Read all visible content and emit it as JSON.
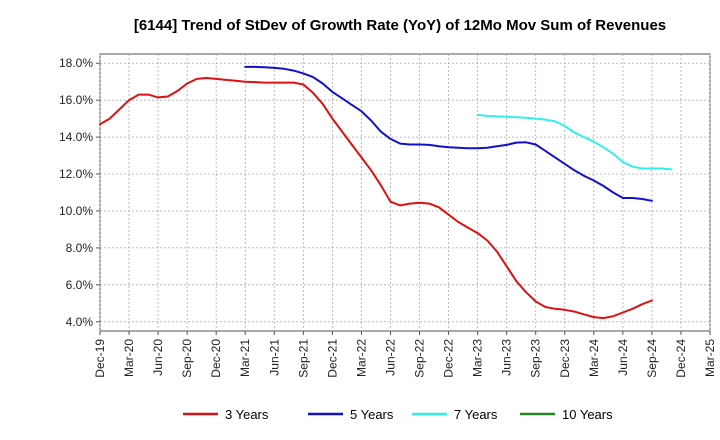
{
  "chart_data": {
    "type": "line",
    "title": "[6144]  Trend of StDev of Growth Rate (YoY) of 12Mo Mov Sum of Revenues",
    "xlabel": "",
    "ylabel": "",
    "ylim": [
      3.5,
      18.5
    ],
    "yticks": [
      4.0,
      6.0,
      8.0,
      10.0,
      12.0,
      14.0,
      16.0,
      18.0
    ],
    "ytick_labels": [
      "4.0%",
      "6.0%",
      "8.0%",
      "10.0%",
      "12.0%",
      "14.0%",
      "16.0%",
      "18.0%"
    ],
    "x_start_month": "2019-12",
    "x_range_months": [
      0,
      63
    ],
    "x_tick_labels": [
      "Dec-19",
      "Mar-20",
      "Jun-20",
      "Sep-20",
      "Dec-20",
      "Mar-21",
      "Jun-21",
      "Sep-21",
      "Dec-21",
      "Mar-22",
      "Jun-22",
      "Sep-22",
      "Dec-22",
      "Mar-23",
      "Jun-23",
      "Sep-23",
      "Dec-23",
      "Mar-24",
      "Jun-24",
      "Sep-24",
      "Dec-24",
      "Mar-25"
    ],
    "grid": true,
    "legend_position": "bottom",
    "series": [
      {
        "name": "3 Years",
        "color": "#dd1111",
        "start_index": 0,
        "values": [
          14.7,
          15.0,
          15.5,
          16.0,
          16.3,
          16.3,
          16.15,
          16.2,
          16.5,
          16.9,
          17.15,
          17.2,
          17.15,
          17.1,
          17.05,
          17.0,
          16.98,
          16.95,
          16.95,
          16.95,
          16.95,
          16.85,
          16.4,
          15.8,
          15.0,
          14.3,
          13.6,
          12.9,
          12.2,
          11.4,
          10.5,
          10.3,
          10.4,
          10.45,
          10.4,
          10.2,
          9.8,
          9.4,
          9.1,
          8.8,
          8.4,
          7.8,
          7.0,
          6.2,
          5.6,
          5.1,
          4.8,
          4.7,
          4.65,
          4.55,
          4.4,
          4.25,
          4.2,
          4.3,
          4.5,
          4.7,
          4.95,
          5.15
        ]
      },
      {
        "name": "5 Years",
        "color": "#1111cc",
        "start_index": 15,
        "values": [
          17.8,
          17.8,
          17.78,
          17.75,
          17.7,
          17.6,
          17.45,
          17.25,
          16.9,
          16.45,
          16.1,
          15.75,
          15.4,
          14.9,
          14.3,
          13.9,
          13.65,
          13.6,
          13.6,
          13.58,
          13.5,
          13.45,
          13.42,
          13.4,
          13.4,
          13.42,
          13.5,
          13.58,
          13.7,
          13.72,
          13.6,
          13.25,
          12.9,
          12.55,
          12.2,
          11.9,
          11.65,
          11.35,
          11.0,
          10.7,
          10.7,
          10.65,
          10.55
        ]
      },
      {
        "name": "7 Years",
        "color": "#33eeee",
        "start_index": 39,
        "values": [
          15.2,
          15.15,
          15.12,
          15.1,
          15.08,
          15.05,
          15.0,
          14.95,
          14.85,
          14.6,
          14.25,
          14.0,
          13.75,
          13.45,
          13.1,
          12.65,
          12.4,
          12.3,
          12.3,
          12.3,
          12.25
        ]
      },
      {
        "name": "10 Years",
        "color": "#228822",
        "start_index": 0,
        "values": []
      }
    ]
  }
}
